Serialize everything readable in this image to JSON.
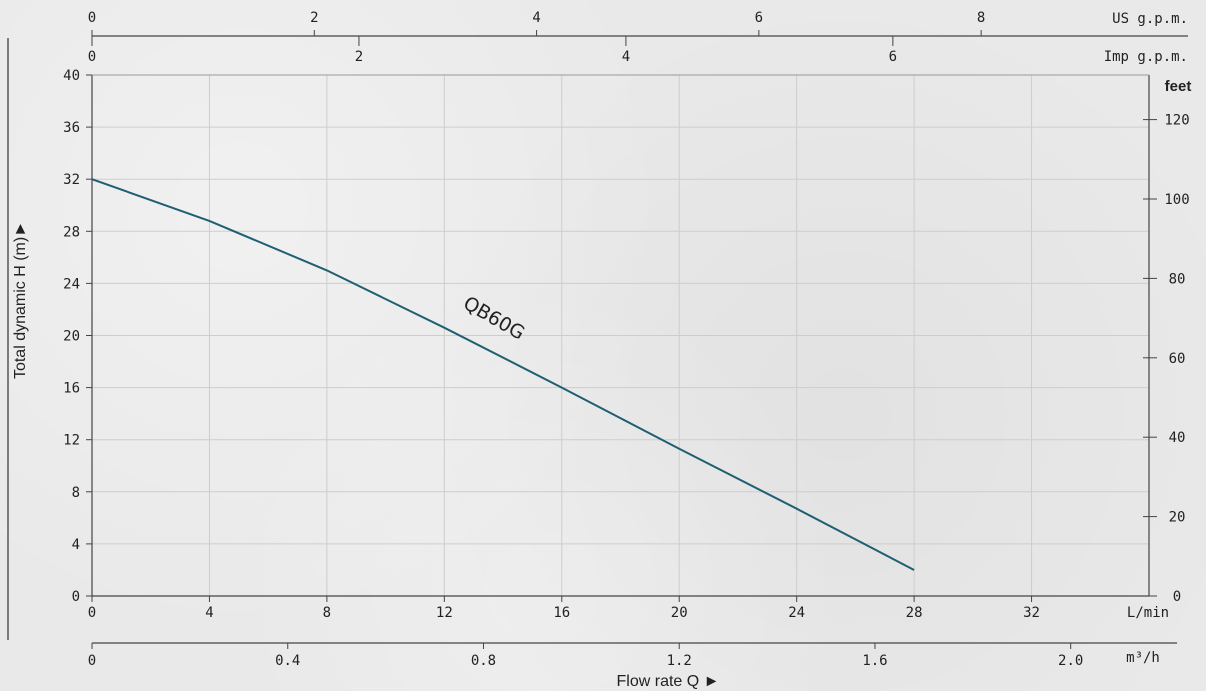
{
  "chart_data": {
    "type": "line",
    "grid": true,
    "x_axis": {
      "label": "Flow rate Q ►",
      "primary_unit": "L/min",
      "primary_range": [
        0,
        36
      ],
      "primary_ticks": [
        0,
        4,
        8,
        12,
        16,
        20,
        24,
        28,
        32
      ],
      "m3h_unit": "m³/h",
      "m3h_ticks": [
        "0",
        "0.4",
        "0.8",
        "1.2",
        "1.6",
        "2.0"
      ],
      "us_gpm_unit": "US g.p.m.",
      "us_gpm_ticks": [
        "0",
        "2",
        "4",
        "6",
        "8"
      ],
      "imp_gpm_unit": "Imp g.p.m.",
      "imp_gpm_ticks": [
        "0",
        "2",
        "4",
        "6"
      ]
    },
    "y_axis": {
      "label": "Total dynamic H (m)►",
      "range": [
        0,
        40
      ],
      "ticks": [
        0,
        4,
        8,
        12,
        16,
        20,
        24,
        28,
        32,
        36,
        40
      ]
    },
    "y2_axis": {
      "unit": "feet",
      "ticks": [
        "0",
        "20",
        "40",
        "60",
        "80",
        "100",
        "120"
      ]
    },
    "series": [
      {
        "name": "QB60G",
        "color": "#1f5f73",
        "x": [
          0,
          4,
          8,
          12,
          16,
          20,
          24,
          28
        ],
        "y": [
          32,
          28.8,
          25,
          20.6,
          16,
          11.3,
          6.7,
          2
        ]
      }
    ]
  }
}
